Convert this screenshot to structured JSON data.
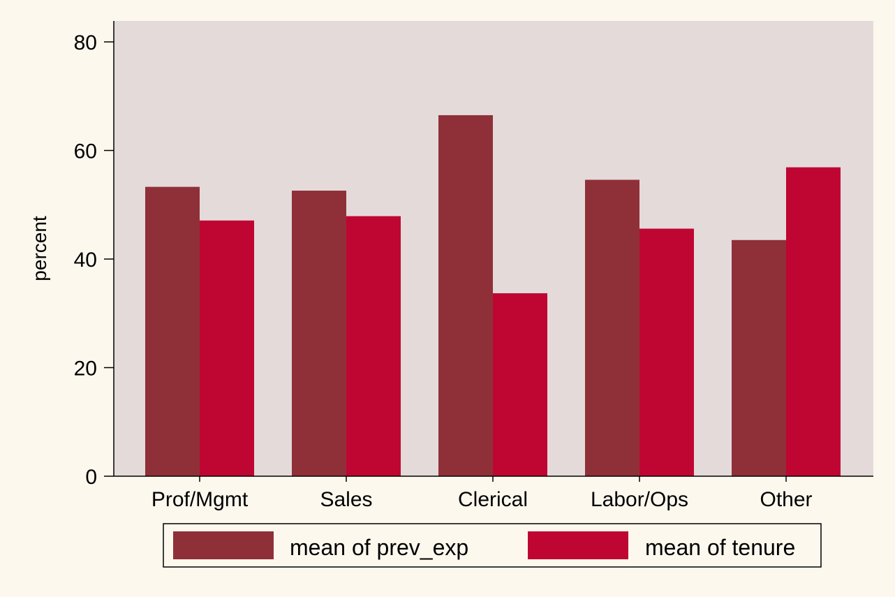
{
  "chart_data": {
    "type": "bar",
    "title": "",
    "xlabel": "",
    "ylabel": "percent",
    "ylim": [
      0,
      80
    ],
    "yticks": [
      0,
      20,
      40,
      60,
      80
    ],
    "grid": false,
    "legend_position": "bottom",
    "categories": [
      "Prof/Mgmt",
      "Sales",
      "Clerical",
      "Labor/Ops",
      "Other"
    ],
    "series": [
      {
        "name": "mean of prev_exp",
        "color": "#8f3039",
        "values": [
          53.3,
          52.6,
          66.5,
          54.6,
          43.5
        ]
      },
      {
        "name": "mean of tenure",
        "color": "#bf0633",
        "values": [
          47.1,
          47.9,
          33.7,
          45.6,
          56.9
        ]
      }
    ]
  },
  "colors": {
    "page_background": "#fdf8ee",
    "plot_background": "#e4dada",
    "axis": "#000000"
  }
}
